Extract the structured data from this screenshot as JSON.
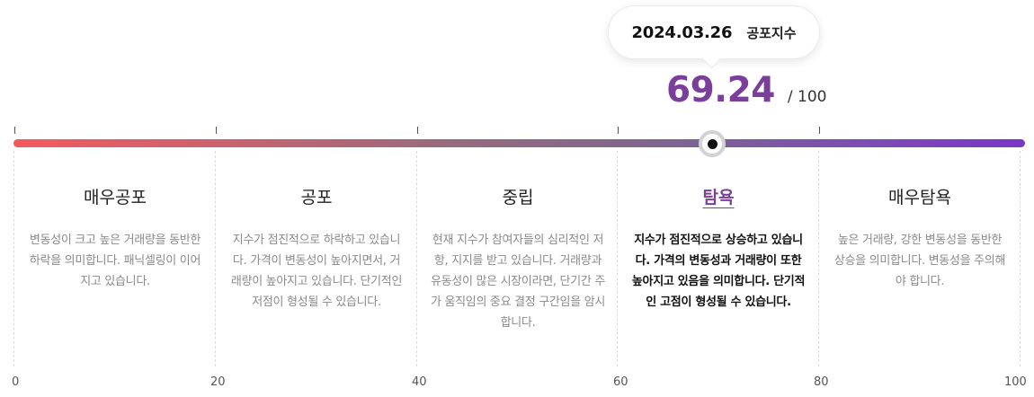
{
  "tooltip": {
    "date": "2024.03.26",
    "label": "공포지수"
  },
  "score": {
    "value": "69.24",
    "max": "/ 100"
  },
  "zones": [
    {
      "title": "매우공포",
      "desc": "변동성이 크고 높은 거래량을 동반한 하락을 의미합니다. 패닉셀링이 이어지고 있습니다."
    },
    {
      "title": "공포",
      "desc": "지수가 점진적으로 하락하고 있습니다. 가격이 변동성이 높아지면서, 거래량이 높아지고 있습니다. 단기적인 저점이 형성될 수 있습니다."
    },
    {
      "title": "중립",
      "desc": "현재 지수가 참여자들의 심리적인 저항, 지지를 받고 있습니다. 거래량과 유동성이 많은 시장이라면, 단기간 주가 움직임의 중요 결정 구간임을 암시합니다."
    },
    {
      "title": "탐욕",
      "desc": "지수가 점진적으로 상승하고 있습니다. 가격의 변동성과 거래량이 또한 높아지고 있음을 의미합니다. 단기적인 고점이 형성될 수 있습니다."
    },
    {
      "title": "매우탐욕",
      "desc": "높은 거래량, 강한 변동성을 동반한 상승을 의미합니다. 변동성을 주의해야 합니다."
    }
  ],
  "active_zone": "탐욕",
  "scale": [
    "0",
    "20",
    "40",
    "60",
    "80",
    "100"
  ],
  "colors": {
    "accent": "#7a3f9a",
    "gradient_start": "#f35a5e",
    "gradient_end": "#7b35c7"
  }
}
